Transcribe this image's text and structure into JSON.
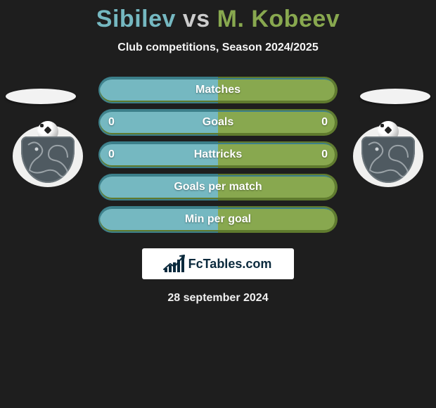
{
  "title": {
    "playerA": "Sibilev",
    "vs": "vs",
    "playerB": "M. Kobeev"
  },
  "subtitle": "Club competitions, Season 2024/2025",
  "colors": {
    "teal": "#75b8c1",
    "olive": "#88a84f",
    "tealBorder": "#3c7f8a",
    "oliveBorder": "#5f7a2e"
  },
  "rows": [
    {
      "label": "Matches",
      "a": null,
      "b": null
    },
    {
      "label": "Goals",
      "a": "0",
      "b": "0"
    },
    {
      "label": "Hattricks",
      "a": "0",
      "b": "0"
    },
    {
      "label": "Goals per match",
      "a": null,
      "b": null
    },
    {
      "label": "Min per goal",
      "a": null,
      "b": null
    }
  ],
  "fc_logo_text": "FcTables.com",
  "fc_logo_bars": [
    6,
    10,
    14,
    18,
    24
  ],
  "date": "28 september 2024"
}
